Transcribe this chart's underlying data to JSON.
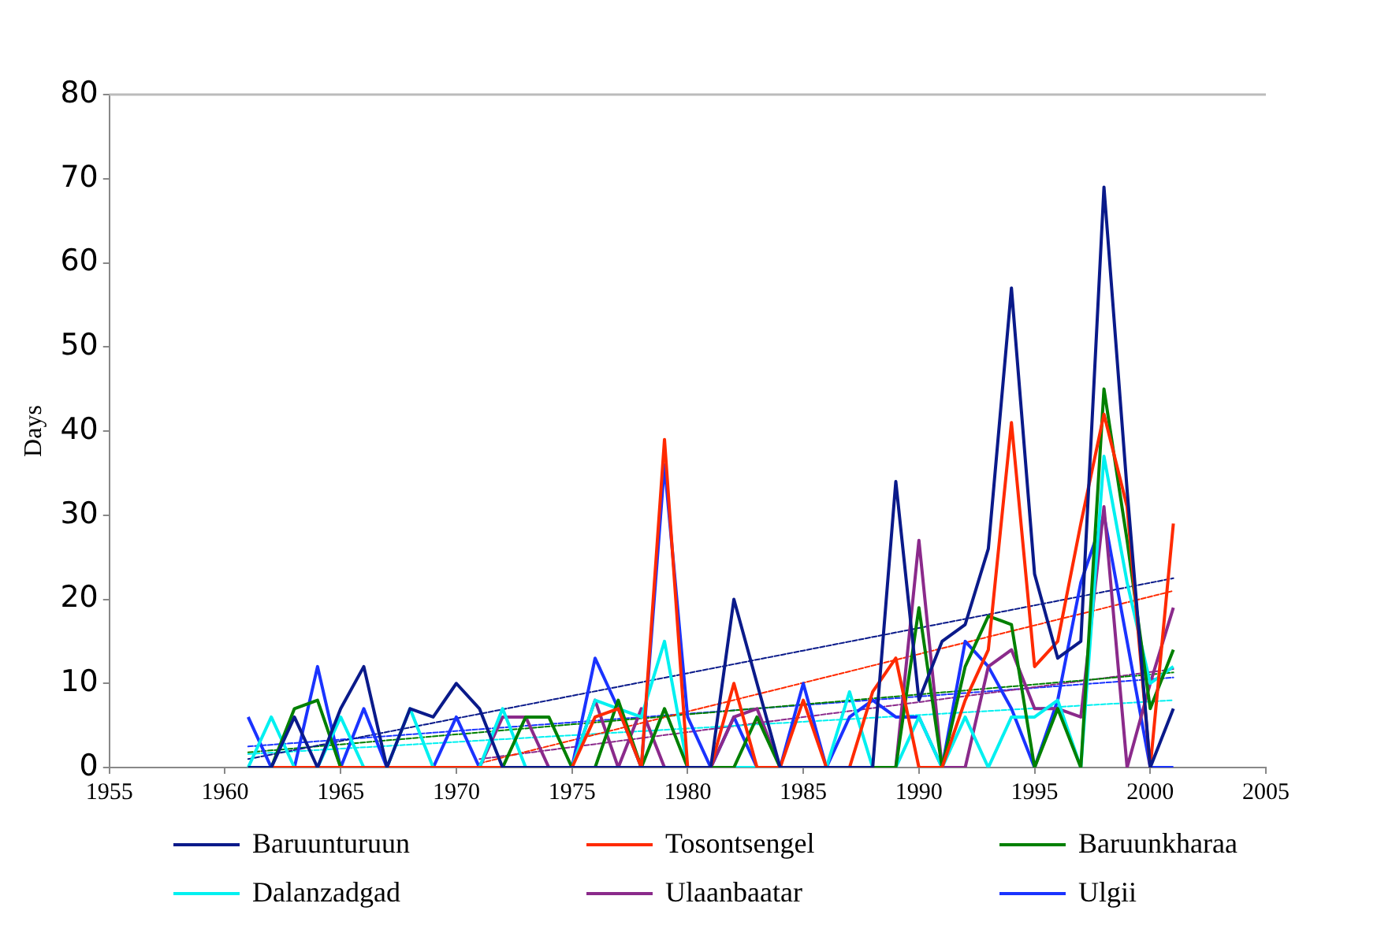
{
  "chart_data": {
    "type": "line",
    "ylabel": "Days",
    "xlim": [
      1955,
      2005
    ],
    "xticks": [
      1955,
      1960,
      1965,
      1970,
      1975,
      1980,
      1985,
      1990,
      1995,
      2000,
      2005
    ],
    "ylim": [
      0,
      80
    ],
    "yticks": [
      0,
      10,
      20,
      30,
      40,
      50,
      60,
      70,
      80
    ],
    "grid": false,
    "legend": "bottom",
    "marker": "none",
    "line_style": "solid",
    "x": [
      1961,
      1962,
      1963,
      1964,
      1965,
      1966,
      1967,
      1968,
      1969,
      1970,
      1971,
      1972,
      1973,
      1974,
      1975,
      1976,
      1977,
      1978,
      1979,
      1980,
      1981,
      1982,
      1983,
      1984,
      1985,
      1986,
      1987,
      1988,
      1989,
      1990,
      1991,
      1992,
      1993,
      1994,
      1995,
      1996,
      1997,
      1998,
      1999,
      2000,
      2001
    ],
    "series": [
      {
        "name": "Baruunturuun",
        "color": "#0a1a8a",
        "values": [
          0,
          0,
          6,
          0,
          7,
          12,
          0,
          7,
          6,
          10,
          7,
          0,
          0,
          0,
          0,
          0,
          0,
          0,
          0,
          0,
          0,
          20,
          10,
          0,
          0,
          0,
          0,
          0,
          34,
          8,
          15,
          17,
          26,
          57,
          23,
          13,
          15,
          69,
          33,
          0,
          7
        ]
      },
      {
        "name": "Tosontsengel",
        "color": "#ff2a00",
        "values": [
          0,
          0,
          0,
          0,
          0,
          0,
          0,
          0,
          0,
          0,
          0,
          0,
          0,
          0,
          0,
          6,
          7,
          0,
          39,
          0,
          0,
          10,
          0,
          0,
          8,
          0,
          0,
          9,
          13,
          0,
          0,
          8,
          14,
          41,
          12,
          15,
          29,
          42,
          31,
          0,
          29
        ]
      },
      {
        "name": "Baruunkharaa",
        "color": "#008000",
        "values": [
          0,
          0,
          7,
          8,
          0,
          0,
          0,
          0,
          0,
          0,
          0,
          0,
          6,
          6,
          0,
          0,
          8,
          0,
          7,
          0,
          0,
          0,
          6,
          0,
          0,
          0,
          0,
          0,
          0,
          19,
          0,
          12,
          18,
          17,
          0,
          7,
          0,
          45,
          27,
          7,
          14
        ]
      },
      {
        "name": "Dalanzadgad",
        "color": "#00f0f0",
        "values": [
          0,
          6,
          0,
          0,
          6,
          0,
          0,
          7,
          0,
          0,
          0,
          7,
          0,
          0,
          0,
          8,
          7,
          6,
          15,
          0,
          0,
          0,
          0,
          0,
          0,
          0,
          9,
          0,
          0,
          6,
          0,
          6,
          0,
          6,
          6,
          8,
          0,
          37,
          22,
          10,
          12
        ]
      },
      {
        "name": "Ulaanbaatar",
        "color": "#8b2a8b",
        "values": [
          null,
          null,
          null,
          null,
          null,
          null,
          null,
          null,
          null,
          null,
          0,
          6,
          6,
          0,
          0,
          8,
          0,
          7,
          0,
          0,
          0,
          6,
          7,
          0,
          0,
          0,
          0,
          0,
          0,
          27,
          0,
          0,
          12,
          14,
          7,
          7,
          6,
          31,
          0,
          10,
          19
        ]
      },
      {
        "name": "Ulgii",
        "color": "#1a33ff",
        "values": [
          6,
          0,
          0,
          12,
          0,
          7,
          0,
          0,
          0,
          6,
          0,
          0,
          0,
          0,
          0,
          13,
          7,
          0,
          36,
          6,
          0,
          6,
          0,
          0,
          10,
          0,
          6,
          8,
          6,
          6,
          0,
          15,
          12,
          7,
          0,
          8,
          22,
          30,
          15,
          0,
          0
        ]
      },
      {
        "type": "line",
        "line_style": "dotted",
        "color": "#0a1a8a",
        "x": [
          1961,
          2001
        ],
        "values": [
          1,
          22.5
        ]
      },
      {
        "type": "line",
        "line_style": "dotted",
        "color": "#ff2a00",
        "x": [
          1971,
          2001
        ],
        "values": [
          0.5,
          21
        ]
      },
      {
        "type": "line",
        "line_style": "dotted",
        "color": "#008000",
        "x": [
          1961,
          2001
        ],
        "values": [
          1.8,
          11.3
        ]
      },
      {
        "type": "line",
        "line_style": "dotted",
        "color": "#00f0f0",
        "x": [
          1961,
          2001
        ],
        "values": [
          1.6,
          8
        ]
      },
      {
        "type": "line",
        "line_style": "dotted",
        "color": "#8b2a8b",
        "x": [
          1971,
          2001
        ],
        "values": [
          1,
          11.7
        ]
      },
      {
        "type": "line",
        "line_style": "dotted",
        "color": "#1a33ff",
        "x": [
          1961,
          2001
        ],
        "values": [
          2.5,
          10.7
        ]
      }
    ]
  }
}
